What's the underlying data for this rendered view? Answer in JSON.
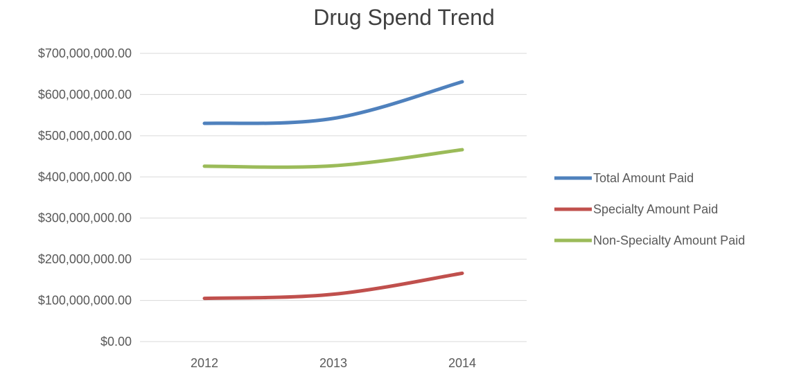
{
  "chart_data": {
    "type": "line",
    "title": "Drug Spend Trend",
    "xlabel": "",
    "ylabel": "",
    "categories": [
      "2012",
      "2013",
      "2014"
    ],
    "ylim": [
      0,
      700000000
    ],
    "yticks": [
      0,
      100000000,
      200000000,
      300000000,
      400000000,
      500000000,
      600000000,
      700000000
    ],
    "ytick_labels": [
      "$0.00",
      "$100,000,000.00",
      "$200,000,000.00",
      "$300,000,000.00",
      "$400,000,000.00",
      "$500,000,000.00",
      "$600,000,000.00",
      "$700,000,000.00"
    ],
    "grid": true,
    "legend_position": "right",
    "series": [
      {
        "name": "Total Amount Paid",
        "color": "#4f81bd",
        "values": [
          530000000,
          542000000,
          631000000
        ]
      },
      {
        "name": "Specialty Amount Paid",
        "color": "#c0504d",
        "values": [
          105000000,
          115000000,
          166000000
        ]
      },
      {
        "name": "Non-Specialty Amount Paid",
        "color": "#9bbb59",
        "values": [
          426000000,
          427000000,
          466000000
        ]
      }
    ]
  }
}
